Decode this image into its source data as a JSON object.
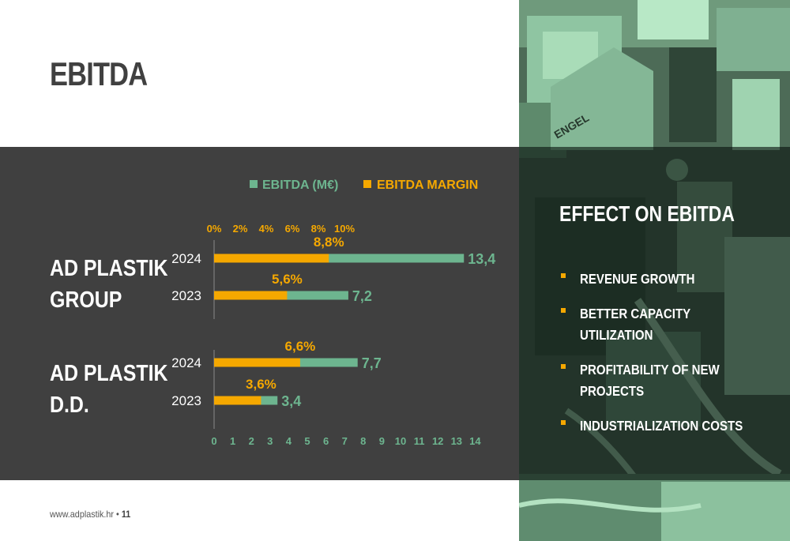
{
  "title": "EBITDA",
  "footer": {
    "url": "www.adplastik.hr",
    "separator": "•",
    "page": "11"
  },
  "effect": {
    "title": "EFFECT ON EBITDA",
    "items": [
      "REVENUE GROWTH",
      "BETTER CAPACITY UTILIZATION",
      "PROFITABILITY OF NEW PROJECTS",
      "INDUSTRIALIZATION COSTS"
    ]
  },
  "photo": {
    "brand_text": "ENGEL"
  },
  "colors": {
    "green": "#6db58f",
    "orange": "#f5a800",
    "band": "#404040",
    "white": "#ffffff"
  },
  "chart_data": {
    "type": "bar",
    "orientation": "horizontal",
    "legend": [
      "EBITDA (M€)",
      "EBITDA MARGIN"
    ],
    "legend_position": "top",
    "groups": [
      {
        "name": "AD PLASTIK GROUP",
        "rows": [
          {
            "year": "2024",
            "ebitda": 13.4,
            "ebitda_label": "13,4",
            "margin": 8.8,
            "margin_label": "8,8%"
          },
          {
            "year": "2023",
            "ebitda": 7.2,
            "ebitda_label": "7,2",
            "margin": 5.6,
            "margin_label": "5,6%"
          }
        ]
      },
      {
        "name": "AD PLASTIK D.D.",
        "rows": [
          {
            "year": "2024",
            "ebitda": 7.7,
            "ebitda_label": "7,7",
            "margin": 6.6,
            "margin_label": "6,6%"
          },
          {
            "year": "2023",
            "ebitda": 3.4,
            "ebitda_label": "3,4",
            "margin": 3.6,
            "margin_label": "3,6%"
          }
        ]
      }
    ],
    "x_ticks": [
      "0",
      "1",
      "2",
      "3",
      "4",
      "5",
      "6",
      "7",
      "8",
      "9",
      "10",
      "11",
      "12",
      "13",
      "14"
    ],
    "xlim": [
      0,
      14
    ],
    "margin_ticks": [
      "0%",
      "2%",
      "4%",
      "6%",
      "8%",
      "10%"
    ],
    "margin_lim": [
      0,
      10
    ],
    "grid": false
  }
}
